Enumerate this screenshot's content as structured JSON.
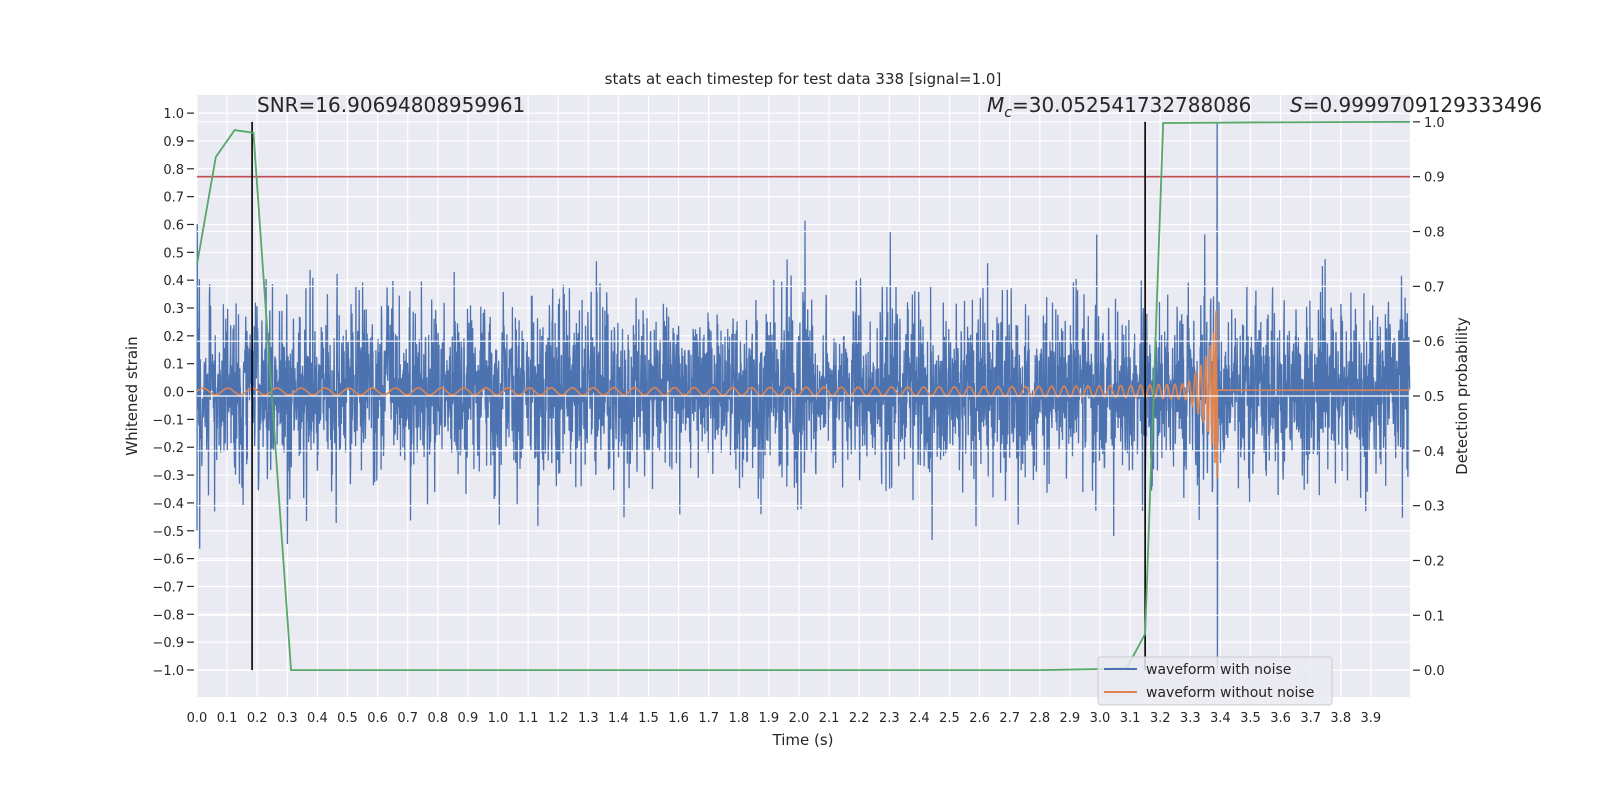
{
  "chart_data": {
    "type": "line",
    "title": "stats at each timestep for test data 338 [signal=1.0]",
    "xlabel": "Time (s)",
    "ylabel": "Whitened strain",
    "y2label": "Detection probability",
    "xlim": [
      0.0,
      4.03
    ],
    "ylim": [
      -1.097,
      1.065
    ],
    "y2lim": [
      -0.049,
      1.049
    ],
    "grid": true,
    "legend_placement": "lower-right",
    "x_ticks": [
      "0.0",
      "0.1",
      "0.2",
      "0.3",
      "0.4",
      "0.5",
      "0.6",
      "0.7",
      "0.8",
      "0.9",
      "1.0",
      "1.1",
      "1.2",
      "1.3",
      "1.4",
      "1.5",
      "1.6",
      "1.7",
      "1.8",
      "1.9",
      "2.0",
      "2.1",
      "2.2",
      "2.3",
      "2.4",
      "2.5",
      "2.6",
      "2.7",
      "2.8",
      "2.9",
      "3.0",
      "3.1",
      "3.2",
      "3.3",
      "3.4",
      "3.5",
      "3.6",
      "3.7",
      "3.8",
      "3.9"
    ],
    "y_ticks": [
      "1.0",
      "0.9",
      "0.8",
      "0.7",
      "0.6",
      "0.5",
      "0.4",
      "0.3",
      "0.2",
      "0.1",
      "0.0",
      "−0.1",
      "−0.2",
      "−0.3",
      "−0.4",
      "−0.5",
      "−0.6",
      "−0.7",
      "−0.8",
      "−0.9",
      "−1.0"
    ],
    "y2_ticks": [
      "1.0",
      "0.9",
      "0.8",
      "0.7",
      "0.6",
      "0.5",
      "0.4",
      "0.3",
      "0.2",
      "0.1",
      "0.0"
    ],
    "annotations": {
      "snr": "SNR=16.90694808959961",
      "mc_symbol": "M",
      "mc_sub": "c",
      "mc_value": "=30.052541732788086",
      "s_symbol": "S",
      "s_value": "=0.9999709129333496"
    },
    "series": [
      {
        "name": "waveform with noise",
        "axis": "left",
        "color": "#4C72B0",
        "noise_std": 0.15,
        "range": [
          -1.0,
          0.97
        ]
      },
      {
        "name": "waveform without noise",
        "axis": "left",
        "color": "#DD8452",
        "merger_time": 3.39,
        "peak": 0.67,
        "trough": -0.6,
        "post_merger_level": 0.005
      },
      {
        "axis": "right",
        "color": "#55A868",
        "x": [
          0.0,
          0.0625,
          0.125,
          0.1875,
          0.3125,
          1.0,
          2.0,
          2.5,
          2.8,
          3.0,
          3.09,
          3.15,
          3.21,
          3.5,
          4.03
        ],
        "values": [
          0.74,
          0.936,
          0.985,
          0.98,
          0.0,
          0.0,
          0.0,
          0.0,
          0.0,
          0.002,
          0.005,
          0.066,
          0.998,
          0.999,
          1.0
        ]
      }
    ],
    "threshold": {
      "axis": "right",
      "value": 0.9,
      "color": "#C44E52"
    },
    "vertical_lines": {
      "x": [
        0.183,
        3.15
      ],
      "y2_range": [
        0.0,
        1.0
      ],
      "color": "#000000"
    },
    "background": "#EAEAF2"
  }
}
